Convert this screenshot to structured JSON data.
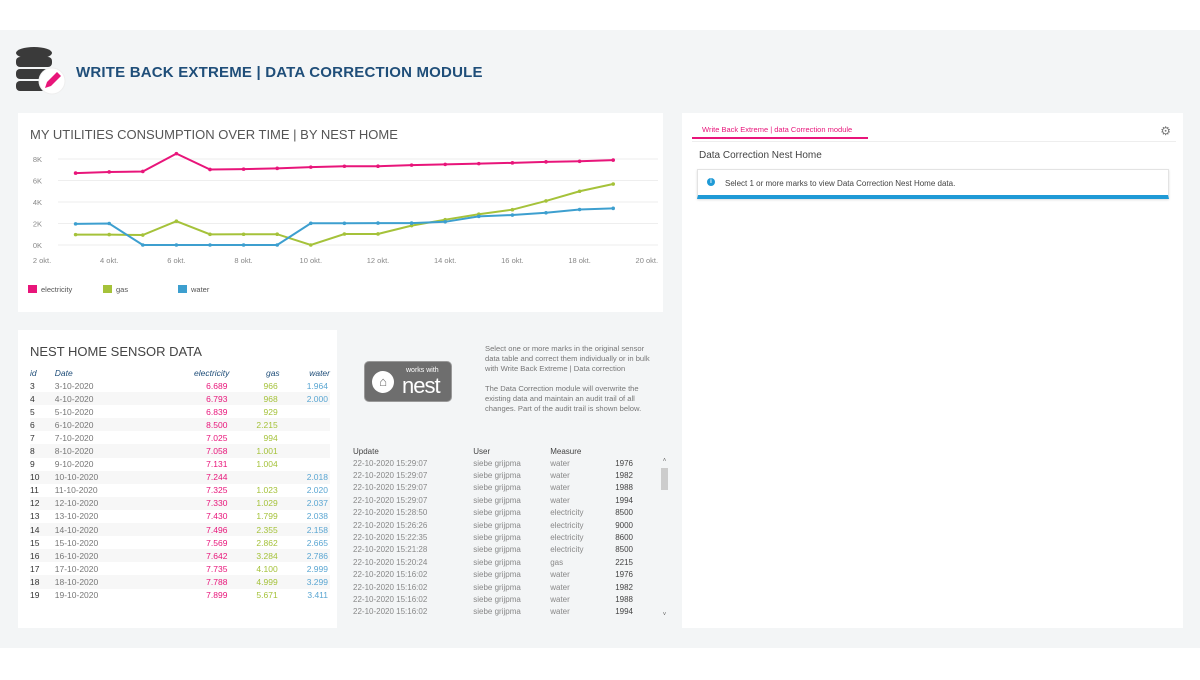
{
  "header": {
    "title": "WRITE BACK EXTREME | DATA CORRECTION MODULE",
    "logo_icon": "database-edit-icon"
  },
  "chart_data": {
    "type": "line",
    "title": "MY UTILITIES CONSUMPTION OVER TIME | BY NEST HOME",
    "x": [
      "3 okt.",
      "4 okt.",
      "5 okt.",
      "6 okt.",
      "7 okt.",
      "8 okt.",
      "9 okt.",
      "10 okt.",
      "11 okt.",
      "12 okt.",
      "13 okt.",
      "14 okt.",
      "15 okt.",
      "16 okt.",
      "17 okt.",
      "18 okt.",
      "19 okt."
    ],
    "x_ticks": [
      "2 okt.",
      "4 okt.",
      "6 okt.",
      "8 okt.",
      "10 okt.",
      "12 okt.",
      "14 okt.",
      "16 okt.",
      "18 okt.",
      "20 okt."
    ],
    "y_ticks": [
      "0K",
      "2K",
      "4K",
      "6K",
      "8K"
    ],
    "ylim": [
      0,
      8000
    ],
    "grid": true,
    "legend": "bottom-left",
    "series": [
      {
        "name": "electricity",
        "color": "#e8157a",
        "values": [
          6689,
          6793,
          6839,
          8500,
          7025,
          7058,
          7131,
          7244,
          7325,
          7330,
          7430,
          7496,
          7569,
          7642,
          7735,
          7788,
          7899
        ]
      },
      {
        "name": "gas",
        "color": "#a5c23a",
        "values": [
          966,
          968,
          929,
          2215,
          994,
          1001,
          1004,
          0,
          1023,
          1029,
          1799,
          2355,
          2862,
          3284,
          4100,
          4999,
          5671
        ]
      },
      {
        "name": "water",
        "color": "#3d9fcf",
        "values": [
          1964,
          2000,
          0,
          0,
          0,
          0,
          0,
          2018,
          2020,
          2037,
          2038,
          2158,
          2665,
          2786,
          2999,
          3299,
          3411
        ]
      }
    ]
  },
  "sensor_table": {
    "title": "NEST HOME SENSOR DATA",
    "columns": [
      "id",
      "Date",
      "electricity",
      "gas",
      "water"
    ],
    "rows": [
      [
        "3",
        "3-10-2020",
        "6.689",
        "966",
        "1.964"
      ],
      [
        "4",
        "4-10-2020",
        "6.793",
        "968",
        "2.000"
      ],
      [
        "5",
        "5-10-2020",
        "6.839",
        "929",
        ""
      ],
      [
        "6",
        "6-10-2020",
        "8.500",
        "2.215",
        ""
      ],
      [
        "7",
        "7-10-2020",
        "7.025",
        "994",
        ""
      ],
      [
        "8",
        "8-10-2020",
        "7.058",
        "1.001",
        ""
      ],
      [
        "9",
        "9-10-2020",
        "7.131",
        "1.004",
        ""
      ],
      [
        "10",
        "10-10-2020",
        "7.244",
        "",
        "2.018"
      ],
      [
        "11",
        "11-10-2020",
        "7.325",
        "1.023",
        "2.020"
      ],
      [
        "12",
        "12-10-2020",
        "7.330",
        "1.029",
        "2.037"
      ],
      [
        "13",
        "13-10-2020",
        "7.430",
        "1.799",
        "2.038"
      ],
      [
        "14",
        "14-10-2020",
        "7.496",
        "2.355",
        "2.158"
      ],
      [
        "15",
        "15-10-2020",
        "7.569",
        "2.862",
        "2.665"
      ],
      [
        "16",
        "16-10-2020",
        "7.642",
        "3.284",
        "2.786"
      ],
      [
        "17",
        "17-10-2020",
        "7.735",
        "4.100",
        "2.999"
      ],
      [
        "18",
        "18-10-2020",
        "7.788",
        "4.999",
        "3.299"
      ],
      [
        "19",
        "19-10-2020",
        "7.899",
        "5.671",
        "3.411"
      ]
    ]
  },
  "nest_badge": {
    "line1": "works with",
    "line2": "nest"
  },
  "description": {
    "p1": "Select one or more marks in the original sensor data table and correct them individually or in bulk with Write Back Extreme  | Data correction",
    "p2": "The Data Correction module will overwrite the existing data and maintain an audit trail of all changes. Part of the audit trail is shown below."
  },
  "audit": {
    "columns": [
      "Update",
      "User",
      "Measure",
      ""
    ],
    "rows": [
      [
        "22-10-2020 15:29:07",
        "siebe grijpma",
        "water",
        "1976"
      ],
      [
        "22-10-2020 15:29:07",
        "siebe grijpma",
        "water",
        "1982"
      ],
      [
        "22-10-2020 15:29:07",
        "siebe grijpma",
        "water",
        "1988"
      ],
      [
        "22-10-2020 15:29:07",
        "siebe grijpma",
        "water",
        "1994"
      ],
      [
        "22-10-2020 15:28:50",
        "siebe grijpma",
        "electricity",
        "8500"
      ],
      [
        "22-10-2020 15:26:26",
        "siebe grijpma",
        "electricity",
        "9000"
      ],
      [
        "22-10-2020 15:22:35",
        "siebe grijpma",
        "electricity",
        "8600"
      ],
      [
        "22-10-2020 15:21:28",
        "siebe grijpma",
        "electricity",
        "8500"
      ],
      [
        "22-10-2020 15:20:24",
        "siebe grijpma",
        "gas",
        "2215"
      ],
      [
        "22-10-2020 15:16:02",
        "siebe grijpma",
        "water",
        "1976"
      ],
      [
        "22-10-2020 15:16:02",
        "siebe grijpma",
        "water",
        "1982"
      ],
      [
        "22-10-2020 15:16:02",
        "siebe grijpma",
        "water",
        "1988"
      ],
      [
        "22-10-2020 15:16:02",
        "siebe grijpma",
        "water",
        "1994"
      ]
    ]
  },
  "correction": {
    "tab": "Write Back Extreme | data Correction module",
    "title": "Data Correction Nest Home",
    "info": "Select 1 or more marks to view Data Correction Nest Home data."
  }
}
